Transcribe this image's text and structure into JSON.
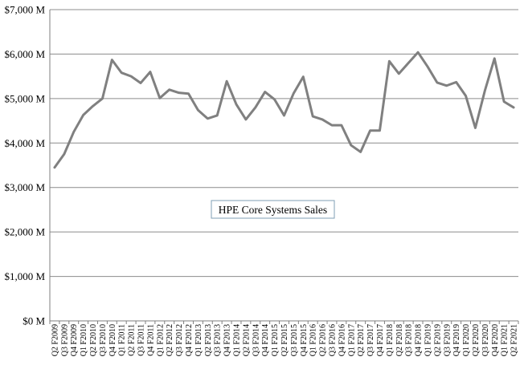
{
  "chart_data": {
    "type": "line",
    "title": "",
    "legend_label": "HPE Core Systems Sales",
    "legend_placement": "center",
    "xlabel": "",
    "ylabel": "",
    "ylim": [
      0,
      7000
    ],
    "yticks": [
      0,
      1000,
      2000,
      3000,
      4000,
      5000,
      6000,
      7000
    ],
    "ytick_labels": [
      "$0 M",
      "$1,000 M",
      "$2,000 M",
      "$3,000 M",
      "$4,000 M",
      "$5,000 M",
      "$6,000 M",
      "$7,000 M"
    ],
    "grid": "horizontal",
    "line_color": "#808080",
    "categories": [
      "Q2 F2009",
      "Q3 F2009",
      "Q4 F2009",
      "Q1 F2010",
      "Q2 F2010",
      "Q3 F2010",
      "Q4 F2010",
      "Q1 F2011",
      "Q2 F2011",
      "Q3 F2011",
      "Q4 F2011",
      "Q1 F2012",
      "Q2 F2012",
      "Q3 F2012",
      "Q4 F2012",
      "Q1 F2013",
      "Q2 F2013",
      "Q3 F2013",
      "Q4 F2013",
      "Q1 F2014",
      "Q2 F2014",
      "Q3 F2014",
      "Q4 F2014",
      "Q1 F2015",
      "Q2 F2015",
      "Q3 F2015",
      "Q4 F2015",
      "Q1 F2016",
      "Q2 F2016",
      "Q3 F2016",
      "Q4 F2016",
      "Q1 F2017",
      "Q2 F2017",
      "Q3 F2017",
      "Q4 F2017",
      "Q1 F2018",
      "Q2 F2018",
      "Q3 F2018",
      "Q4 F2018",
      "Q1 F2019",
      "Q2 F2019",
      "Q3 F2019",
      "Q4 F2019",
      "Q1 F2020",
      "Q2 F2020",
      "Q3 F2020",
      "Q4 F2020",
      "Q1 F2021",
      "Q2 F2021"
    ],
    "series": [
      {
        "name": "HPE Core Systems Sales",
        "values": [
          3450,
          3750,
          4250,
          4630,
          4830,
          5000,
          5870,
          5580,
          5500,
          5350,
          5600,
          5010,
          5200,
          5130,
          5110,
          4740,
          4550,
          4620,
          5390,
          4870,
          4530,
          4800,
          5150,
          4980,
          4620,
          5120,
          5490,
          4600,
          4530,
          4400,
          4400,
          3950,
          3800,
          4280,
          4280,
          5840,
          5560,
          5800,
          6040,
          5720,
          5360,
          5290,
          5370,
          5060,
          4340,
          5180,
          5900,
          4930,
          4800
        ]
      }
    ]
  }
}
